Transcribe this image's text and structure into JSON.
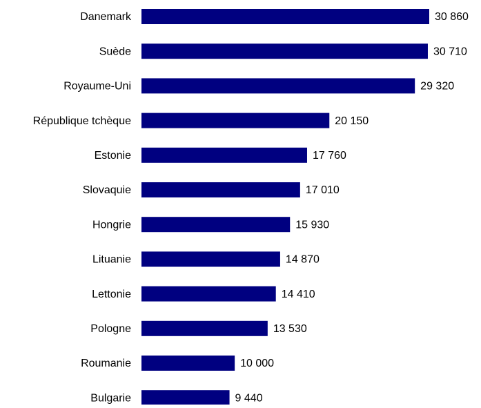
{
  "chart_data": {
    "type": "hbar",
    "categories": [
      "Danemark",
      "Suède",
      "Royaume-Uni",
      "République tchèque",
      "Estonie",
      "Slovaquie",
      "Hongrie",
      "Lituanie",
      "Lettonie",
      "Pologne",
      "Roumanie",
      "Bulgarie"
    ],
    "values": [
      30860,
      30710,
      29320,
      20150,
      17760,
      17010,
      15930,
      14870,
      14410,
      13530,
      10000,
      9440
    ],
    "value_labels": [
      "30 860",
      "30 710",
      "29 320",
      "20 150",
      "17 760",
      "17 010",
      "15 930",
      "14 870",
      "14 410",
      "13 530",
      "10 000",
      "9 440"
    ],
    "color": "#000080",
    "xlim": [
      0,
      32000
    ]
  }
}
